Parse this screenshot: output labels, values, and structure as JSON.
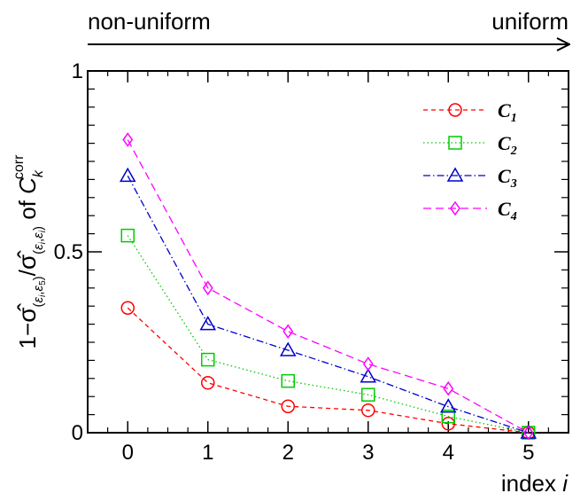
{
  "chart_data": {
    "type": "line",
    "x": [
      0,
      1,
      2,
      3,
      4,
      5
    ],
    "xlim": [
      -0.5,
      5.5
    ],
    "ylim": [
      0,
      1
    ],
    "x_ticks": [
      "0",
      "1",
      "2",
      "3",
      "4",
      "5"
    ],
    "y_ticks": [
      "0",
      "0.5",
      "1"
    ],
    "y_tick_values": [
      0,
      0.5,
      1
    ],
    "xlabel_main": "index ",
    "xlabel_var": "i",
    "ylabel": "1−σ̂(εi,ε5)/σ̂(εi,εi) of Ckcorr",
    "arrow_left_label": "non-uniform",
    "arrow_right_label": "uniform",
    "grid": false,
    "legend_position": "top-right",
    "series": [
      {
        "name": "C",
        "sub": "1",
        "color": "#ff0000",
        "marker": "circle",
        "dash": "5,4",
        "values": [
          0.345,
          0.138,
          0.073,
          0.062,
          0.025,
          0.0
        ]
      },
      {
        "name": "C",
        "sub": "2",
        "color": "#00cc00",
        "marker": "square",
        "dash": "1.5,3",
        "values": [
          0.545,
          0.202,
          0.143,
          0.105,
          0.045,
          0.0
        ]
      },
      {
        "name": "C",
        "sub": "3",
        "color": "#0000cc",
        "marker": "triangle",
        "dash": "8,3,1.5,3",
        "values": [
          0.71,
          0.3,
          0.228,
          0.155,
          0.072,
          0.0
        ]
      },
      {
        "name": "C",
        "sub": "4",
        "color": "#ff00ff",
        "marker": "diamond",
        "dash": "9,5",
        "values": [
          0.81,
          0.4,
          0.28,
          0.19,
          0.122,
          0.0
        ]
      }
    ]
  }
}
